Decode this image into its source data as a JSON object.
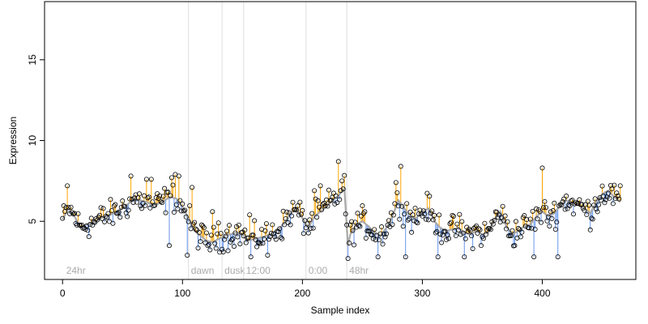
{
  "chart_data": {
    "type": "scatter",
    "title": "",
    "xlabel": "Sample index",
    "ylabel": "Expression",
    "xlim": [
      -15,
      478
    ],
    "ylim": [
      1.4,
      18.6
    ],
    "x_ticks": [
      0,
      100,
      200,
      300,
      400
    ],
    "y_ticks": [
      5,
      10,
      15
    ],
    "x_tick_labels": [
      "0",
      "100",
      "200",
      "300",
      "400"
    ],
    "y_tick_labels": [
      "5",
      "10",
      "15"
    ],
    "grid": false,
    "legend": "none",
    "colors": {
      "above_fit": "#ffa500",
      "below_fit": "#6495ed",
      "fit_line": "#a8a8a8",
      "phase_line": "#dddddd",
      "phase_label": "#aaaaaa",
      "points": "#000000"
    },
    "phase_markers": [
      {
        "label": "24hr",
        "x": 1
      },
      {
        "label": "dawn",
        "x": 105
      },
      {
        "label": "dusk",
        "x": 133
      },
      {
        "label": "12:00",
        "x": 151
      },
      {
        "label": "0:00",
        "x": 203
      },
      {
        "label": "48hr",
        "x": 237
      }
    ],
    "anchors": [
      [
        0,
        5.1
      ],
      [
        5,
        5.8
      ],
      [
        10,
        5.3
      ],
      [
        15,
        4.6
      ],
      [
        20,
        4.8
      ],
      [
        25,
        4.9
      ],
      [
        30,
        5.1
      ],
      [
        35,
        5.3
      ],
      [
        40,
        5.4
      ],
      [
        45,
        5.6
      ],
      [
        50,
        5.8
      ],
      [
        55,
        6.1
      ],
      [
        60,
        6.4
      ],
      [
        65,
        6.3
      ],
      [
        70,
        6.2
      ],
      [
        75,
        6.0
      ],
      [
        80,
        6.1
      ],
      [
        85,
        6.3
      ],
      [
        90,
        6.5
      ],
      [
        95,
        6.4
      ],
      [
        100,
        5.9
      ],
      [
        105,
        5.2
      ],
      [
        110,
        4.4
      ],
      [
        115,
        4.1
      ],
      [
        120,
        3.8
      ],
      [
        125,
        3.7
      ],
      [
        130,
        3.9
      ],
      [
        135,
        4.1
      ],
      [
        140,
        4.2
      ],
      [
        145,
        4.3
      ],
      [
        150,
        4.2
      ],
      [
        155,
        3.8
      ],
      [
        160,
        3.9
      ],
      [
        165,
        4.0
      ],
      [
        170,
        4.1
      ],
      [
        175,
        4.3
      ],
      [
        180,
        4.5
      ],
      [
        185,
        4.9
      ],
      [
        190,
        5.5
      ],
      [
        195,
        5.7
      ],
      [
        200,
        5.2
      ],
      [
        205,
        4.6
      ],
      [
        210,
        5.3
      ],
      [
        215,
        5.6
      ],
      [
        220,
        5.9
      ],
      [
        225,
        6.3
      ],
      [
        230,
        6.6
      ],
      [
        235,
        7.0
      ],
      [
        238,
        3.5
      ],
      [
        240,
        4.2
      ],
      [
        245,
        4.8
      ],
      [
        250,
        5.0
      ],
      [
        255,
        4.7
      ],
      [
        260,
        4.3
      ],
      [
        265,
        4.1
      ],
      [
        270,
        4.6
      ],
      [
        275,
        5.3
      ],
      [
        280,
        6.3
      ],
      [
        285,
        5.8
      ],
      [
        290,
        5.3
      ],
      [
        295,
        5.2
      ],
      [
        300,
        5.6
      ],
      [
        305,
        5.8
      ],
      [
        310,
        5.0
      ],
      [
        315,
        4.6
      ],
      [
        320,
        4.4
      ],
      [
        325,
        4.5
      ],
      [
        330,
        4.6
      ],
      [
        335,
        4.3
      ],
      [
        340,
        4.2
      ],
      [
        345,
        4.4
      ],
      [
        350,
        4.2
      ],
      [
        355,
        4.3
      ],
      [
        360,
        5.1
      ],
      [
        365,
        5.6
      ],
      [
        370,
        4.7
      ],
      [
        375,
        4.2
      ],
      [
        380,
        4.4
      ],
      [
        385,
        4.7
      ],
      [
        390,
        4.8
      ],
      [
        395,
        5.3
      ],
      [
        400,
        5.6
      ],
      [
        405,
        5.3
      ],
      [
        410,
        5.5
      ],
      [
        415,
        6.0
      ],
      [
        420,
        6.3
      ],
      [
        425,
        6.1
      ],
      [
        430,
        6.0
      ],
      [
        435,
        5.8
      ],
      [
        440,
        5.5
      ],
      [
        445,
        6.2
      ],
      [
        450,
        6.7
      ],
      [
        455,
        6.9
      ],
      [
        460,
        6.5
      ],
      [
        465,
        6.2
      ]
    ],
    "n_points": 466,
    "spread": 0.85,
    "outliers": [
      [
        4,
        7.2
      ],
      [
        57,
        7.8
      ],
      [
        70,
        7.6
      ],
      [
        74,
        7.6
      ],
      [
        91,
        7.7
      ],
      [
        94,
        7.9
      ],
      [
        97,
        7.8
      ],
      [
        108,
        7.1
      ],
      [
        125,
        5.6
      ],
      [
        130,
        4.9
      ],
      [
        156,
        5.4
      ],
      [
        210,
        6.9
      ],
      [
        215,
        7.2
      ],
      [
        230,
        8.7
      ],
      [
        233,
        7.5
      ],
      [
        238,
        2.7
      ],
      [
        282,
        8.4
      ],
      [
        278,
        7.4
      ],
      [
        400,
        8.3
      ],
      [
        89,
        3.5
      ],
      [
        104,
        2.9
      ],
      [
        157,
        2.8
      ],
      [
        171,
        2.9
      ],
      [
        263,
        2.8
      ],
      [
        286,
        2.8
      ],
      [
        313,
        2.8
      ],
      [
        335,
        2.8
      ],
      [
        393,
        2.8
      ],
      [
        413,
        2.8
      ]
    ]
  }
}
